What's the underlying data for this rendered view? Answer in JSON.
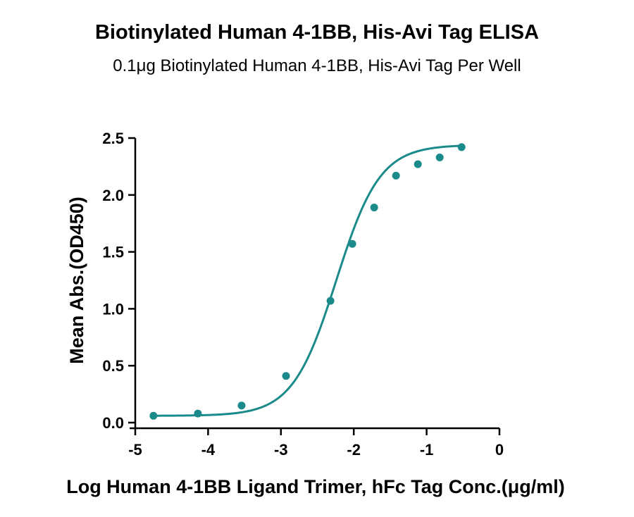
{
  "chart_data": {
    "type": "scatter",
    "title": "Biotinylated Human 4-1BB, His-Avi Tag ELISA",
    "subtitle": "0.1μg Biotinylated Human 4-1BB, His-Avi Tag Per Well",
    "xlabel": "Log Human 4-1BB Ligand Trimer, hFc Tag Conc.(μg/ml)",
    "ylabel": "Mean Abs.(OD450)",
    "xlim": [
      -5,
      0
    ],
    "ylim": [
      0,
      2.5
    ],
    "x_ticks": [
      "-5",
      "-4",
      "-3",
      "-2",
      "-1",
      "0"
    ],
    "y_ticks": [
      "0.0",
      "0.5",
      "1.0",
      "1.5",
      "2.0",
      "2.5"
    ],
    "grid": false,
    "color": "#1b8a8a",
    "series": [
      {
        "x": [
          -4.75,
          -4.14,
          -3.54,
          -2.93,
          -2.32,
          -2.02,
          -1.72,
          -1.42,
          -1.12,
          -0.82,
          -0.52
        ],
        "y": [
          0.06,
          0.08,
          0.15,
          0.41,
          1.07,
          1.57,
          1.89,
          2.17,
          2.27,
          2.33,
          2.42
        ],
        "fit": "sigmoidal"
      }
    ]
  }
}
